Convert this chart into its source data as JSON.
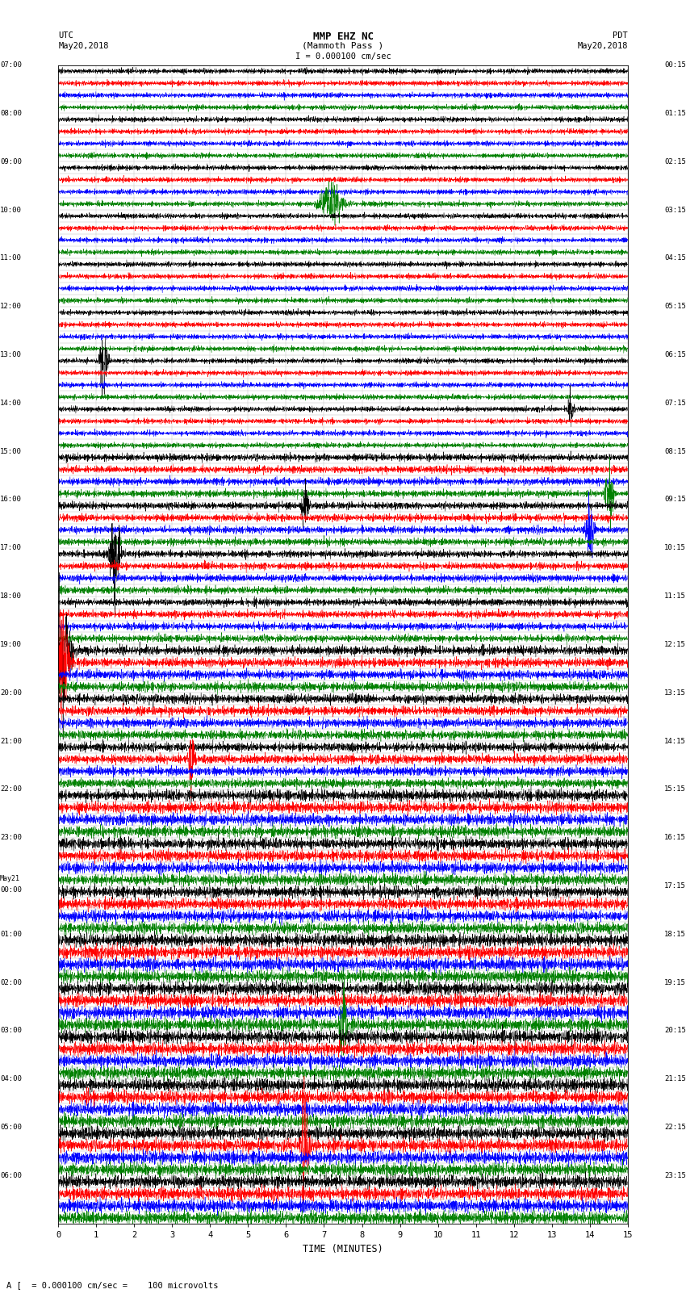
{
  "title_line1": "MMP EHZ NC",
  "title_line2": "(Mammoth Pass )",
  "title_line3": "I = 0.000100 cm/sec",
  "left_label_top": "UTC",
  "left_label_date": "May20,2018",
  "right_label_top": "PDT",
  "right_label_date": "May20,2018",
  "xlabel": "TIME (MINUTES)",
  "bottom_note": "A [  = 0.000100 cm/sec =    100 microvolts",
  "xlim": [
    0,
    15
  ],
  "xticks": [
    0,
    1,
    2,
    3,
    4,
    5,
    6,
    7,
    8,
    9,
    10,
    11,
    12,
    13,
    14,
    15
  ],
  "left_times": [
    "07:00",
    "",
    "",
    "",
    "08:00",
    "",
    "",
    "",
    "09:00",
    "",
    "",
    "",
    "10:00",
    "",
    "",
    "",
    "11:00",
    "",
    "",
    "",
    "12:00",
    "",
    "",
    "",
    "13:00",
    "",
    "",
    "",
    "14:00",
    "",
    "",
    "",
    "15:00",
    "",
    "",
    "",
    "16:00",
    "",
    "",
    "",
    "17:00",
    "",
    "",
    "",
    "18:00",
    "",
    "",
    "",
    "19:00",
    "",
    "",
    "",
    "20:00",
    "",
    "",
    "",
    "21:00",
    "",
    "",
    "",
    "22:00",
    "",
    "",
    "",
    "23:00",
    "",
    "",
    "",
    "May21\n00:00",
    "",
    "",
    "",
    "01:00",
    "",
    "",
    "",
    "02:00",
    "",
    "",
    "",
    "03:00",
    "",
    "",
    "",
    "04:00",
    "",
    "",
    "",
    "05:00",
    "",
    "",
    "",
    "06:00",
    "",
    "",
    ""
  ],
  "right_times": [
    "00:15",
    "",
    "",
    "",
    "01:15",
    "",
    "",
    "",
    "02:15",
    "",
    "",
    "",
    "03:15",
    "",
    "",
    "",
    "04:15",
    "",
    "",
    "",
    "05:15",
    "",
    "",
    "",
    "06:15",
    "",
    "",
    "",
    "07:15",
    "",
    "",
    "",
    "08:15",
    "",
    "",
    "",
    "09:15",
    "",
    "",
    "",
    "10:15",
    "",
    "",
    "",
    "11:15",
    "",
    "",
    "",
    "12:15",
    "",
    "",
    "",
    "13:15",
    "",
    "",
    "",
    "14:15",
    "",
    "",
    "",
    "15:15",
    "",
    "",
    "",
    "16:15",
    "",
    "",
    "",
    "17:15",
    "",
    "",
    "",
    "18:15",
    "",
    "",
    "",
    "19:15",
    "",
    "",
    "",
    "20:15",
    "",
    "",
    "",
    "21:15",
    "",
    "",
    "",
    "22:15",
    "",
    "",
    "",
    "23:15",
    "",
    "",
    ""
  ],
  "n_rows": 96,
  "bg_color": "#ffffff",
  "trace_colors_cycle": [
    "black",
    "red",
    "blue",
    "green"
  ],
  "grid_color": "#bbbbbb",
  "fig_width": 8.5,
  "fig_height": 16.13,
  "noise_seed": 12345
}
